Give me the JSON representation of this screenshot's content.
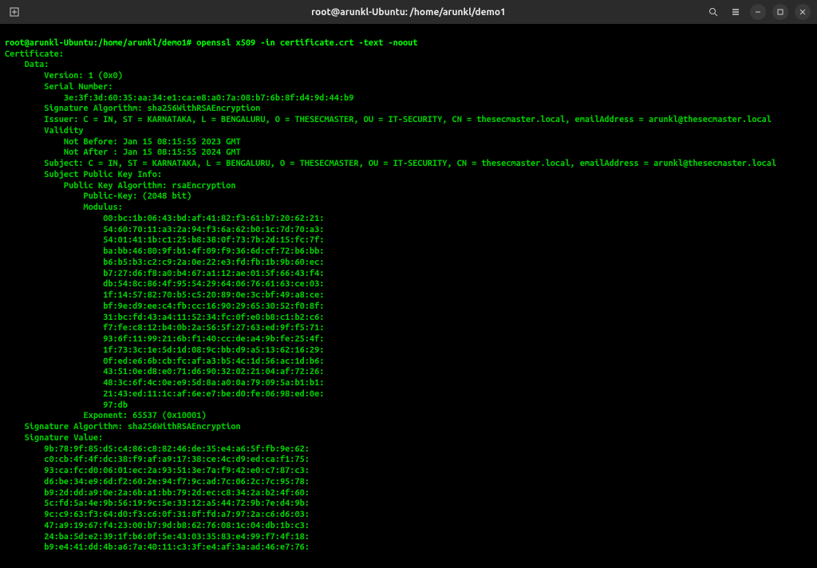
{
  "titlebar": {
    "title": "root@arunkl-Ubuntu: /home/arunkl/demo1"
  },
  "prompt": "root@arunkl-Ubuntu:/home/arunkl/demo1#",
  "command": "openssl x509 -in certificate.crt -text -noout",
  "output": [
    "Certificate:",
    "    Data:",
    "        Version: 1 (0x0)",
    "        Serial Number:",
    "            3e:3f:3d:60:35:aa:34:e1:ca:e8:a0:7a:08:b7:6b:8f:d4:9d:44:b9",
    "        Signature Algorithm: sha256WithRSAEncryption",
    "        Issuer: C = IN, ST = KARNATAKA, L = BENGALURU, O = THESECMASTER, OU = IT-SECURITY, CN = thesecmaster.local, emailAddress = arunkl@thesecmaster.local",
    "        Validity",
    "            Not Before: Jan 15 08:15:55 2023 GMT",
    "            Not After : Jan 15 08:15:55 2024 GMT",
    "        Subject: C = IN, ST = KARNATAKA, L = BENGALURU, O = THESECMASTER, OU = IT-SECURITY, CN = thesecmaster.local, emailAddress = arunkl@thesecmaster.local",
    "        Subject Public Key Info:",
    "            Public Key Algorithm: rsaEncryption",
    "                Public-Key: (2048 bit)",
    "                Modulus:",
    "                    00:bc:1b:06:43:bd:af:41:82:f3:61:b7:20:62:21:",
    "                    54:60:70:11:a3:2a:94:f3:6a:62:b0:1c:7d:70:a3:",
    "                    54:01:41:1b:c1:25:b8:38:0f:73:7b:2d:15:fc:7f:",
    "                    ba:bb:46:80:9f:b1:4f:09:f9:36:6d:cf:72:b6:bb:",
    "                    b6:b5:b3:c2:c9:2a:0e:22:e3:fd:fb:1b:9b:60:ec:",
    "                    b7:27:d6:f8:a0:b4:67:a1:12:ae:01:5f:66:43:f4:",
    "                    db:54:8c:86:4f:95:54:29:64:06:76:61:63:ce:03:",
    "                    1f:14:57:82:70:b5:c5:20:89:0e:3c:bf:49:a8:ce:",
    "                    bf:9e:d9:ee:c4:fb:cc:16:90:29:65:30:52:f0:8f:",
    "                    31:bc:fd:43:a4:11:52:34:fc:0f:e0:b8:c1:b2:c6:",
    "                    f7:fe:c8:12:b4:0b:2a:56:5f:27:63:ed:9f:f5:71:",
    "                    93:6f:11:99:21:6b:f1:40:cc:de:a4:9b:fe:25:4f:",
    "                    1f:73:3c:1e:5d:1d:08:9c:bb:d9:a5:13:62:16:29:",
    "                    0f:ed:e6:6b:cb:fc:af:a3:b5:4c:1d:56:ac:1d:b6:",
    "                    43:51:0e:d8:e0:71:d6:90:32:02:21:04:af:72:26:",
    "                    48:3c:6f:4c:0e:e9:5d:8a:a0:0a:79:09:5a:b1:b1:",
    "                    21:43:ed:11:1c:af:6e:e7:be:d0:fe:06:98:ed:0e:",
    "                    97:db",
    "                Exponent: 65537 (0x10001)",
    "    Signature Algorithm: sha256WithRSAEncryption",
    "    Signature Value:",
    "        9b:78:9f:85:d5:c4:86:c8:82:46:de:35:e4:a6:5f:fb:9e:62:",
    "        c0:cb:4f:4f:dc:38:f9:af:a9:17:38:ce:4c:d9:ed:ca:f1:75:",
    "        93:ca:fc:d0:06:01:ec:2a:93:51:3e:7a:f9:42:e0:c7:87:c3:",
    "        d6:be:34:e9:6d:f2:60:2e:94:f7:9c:ad:7c:06:2c:7c:95:78:",
    "        b9:2d:dd:a9:0e:2a:6b:a1:bb:79:2d:ec:c8:34:2a:b2:4f:60:",
    "        5c:fd:5a:4e:9b:56:19:9c:5e:33:12:a5:44:72:9b:7e:d4:9b:",
    "        9c:c9:63:f3:64:d0:f3:c6:0f:31:8f:fd:a7:97:2a:c6:d6:03:",
    "        47:a9:19:67:f4:23:00:b7:9d:b8:62:76:08:1c:04:db:1b:c3:",
    "        24:ba:5d:e2:39:1f:b6:0f:5e:43:03:35:83:e4:99:f7:4f:18:",
    "        b9:e4:41:dd:4b:a6:7a:40:11:c3:3f:e4:af:3a:ad:46:e7:76:"
  ],
  "colors": {
    "background": "#000000",
    "text": "#00ff00",
    "titlebar_bg": "#2b2b2b",
    "titlebar_text": "#dddddd"
  }
}
